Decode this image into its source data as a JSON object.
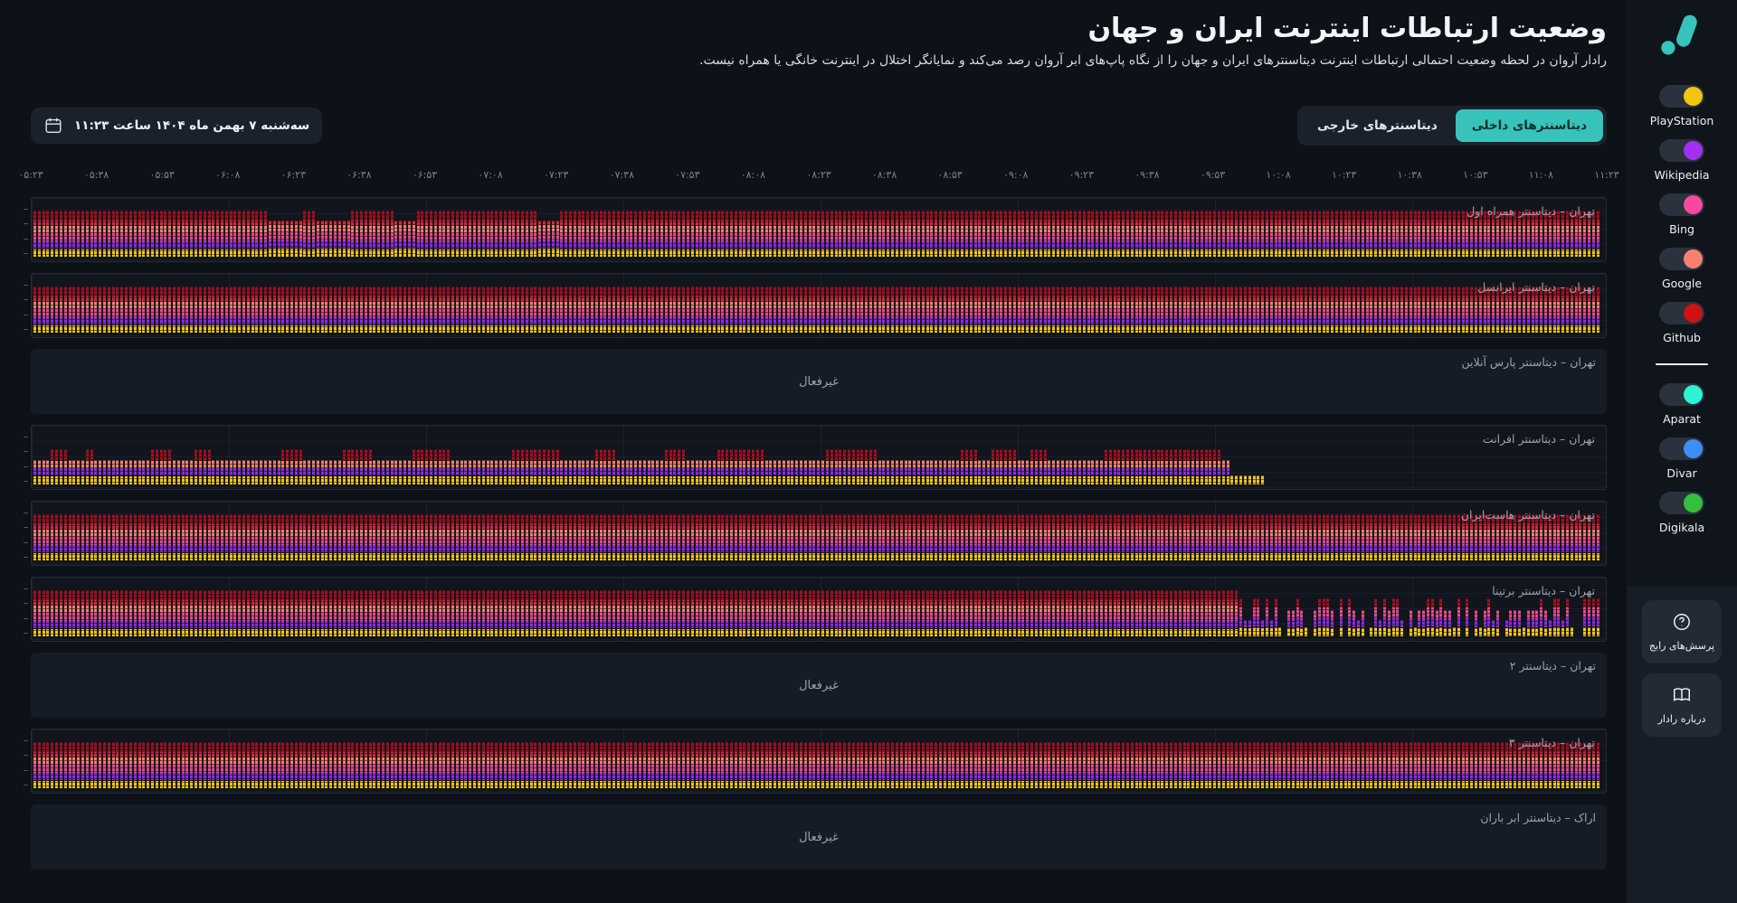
{
  "theme": {
    "accent": "#38c3ba",
    "page_background": "#0d1118"
  },
  "header": {
    "title": "وضعیت ارتباطات اینترنت ایران و جهان",
    "subtitle": "رادار آروان در لحظه وضعیت احتمالی ارتباطات اینترنت دیتاسنترهای ایران و جهان را از نگاه پاپ‌های ابر آروان رصد می‌کند و نمایانگر اختلال در اینترنت خانگی یا همراه نیست.",
    "tabs": [
      {
        "label": "دیتاسنترهای داخلی",
        "active": true
      },
      {
        "label": "دیتاسنترهای خارجی",
        "active": false
      }
    ],
    "date_label": "سه‌شنبه ۷ بهمن ماه ۱۴۰۴ ساعت ۱۱:۲۳"
  },
  "sidebar": {
    "external_services": [
      {
        "name": "PlayStation",
        "color": "#f3c512"
      },
      {
        "name": "Wikipedia",
        "color": "#a42ff5"
      },
      {
        "name": "Bing",
        "color": "#f6499f"
      },
      {
        "name": "Google",
        "color": "#f9806f"
      },
      {
        "name": "Github",
        "color": "#cd1212"
      }
    ],
    "internal_services": [
      {
        "name": "Aparat",
        "color": "#2df2d4"
      },
      {
        "name": "Divar",
        "color": "#3e8df8"
      },
      {
        "name": "Digikala",
        "color": "#35c13c"
      }
    ],
    "faq_label": "پرسش‌های رایج",
    "about_label": "درباره رادار"
  },
  "chart_data": {
    "type": "heatmap",
    "title": "وضعیت ارتباطات اینترنت ایران و جهان",
    "x_range": {
      "start": "05:23",
      "end": "11:23",
      "interval_minutes": 15
    },
    "x_ticks": [
      "۰۵:۲۳",
      "۰۵:۳۸",
      "۰۵:۵۳",
      "۰۶:۰۸",
      "۰۶:۲۳",
      "۰۶:۳۸",
      "۰۶:۵۳",
      "۰۷:۰۸",
      "۰۷:۲۳",
      "۰۷:۳۸",
      "۰۷:۵۳",
      "۰۸:۰۸",
      "۰۸:۲۳",
      "۰۸:۳۸",
      "۰۸:۵۳",
      "۰۹:۰۸",
      "۰۹:۲۳",
      "۰۹:۳۸",
      "۰۹:۵۳",
      "۱۰:۰۸",
      "۱۰:۲۳",
      "۱۰:۳۸",
      "۱۰:۵۳",
      "۱۱:۰۸",
      "۱۱:۲۳"
    ],
    "inactive_label": "غیرفعال",
    "legend_note": "bar segment colors correspond to monitored services",
    "colors": {
      "github": "#a30f1d",
      "red": "#d62839",
      "google": "#ef7f6a",
      "bing": "#e8488a",
      "wikipedia": "#8f2ae0",
      "playstation": "#f5c518"
    },
    "rows": [
      {
        "label": "تهران – دیتاسنتر همراه اول",
        "status": "active",
        "pattern": [
          {
            "from": 0,
            "to": 0.151,
            "style": "full"
          },
          {
            "from": 0.151,
            "to": 0.171,
            "style": "dip"
          },
          {
            "from": 0.171,
            "to": 0.181,
            "style": "full"
          },
          {
            "from": 0.181,
            "to": 0.204,
            "style": "dip"
          },
          {
            "from": 0.204,
            "to": 0.231,
            "style": "full"
          },
          {
            "from": 0.231,
            "to": 0.245,
            "style": "dip"
          },
          {
            "from": 0.245,
            "to": 0.322,
            "style": "full"
          },
          {
            "from": 0.322,
            "to": 0.337,
            "style": "dip"
          },
          {
            "from": 0.337,
            "to": 1,
            "style": "full"
          }
        ]
      },
      {
        "label": "تهران – دیتاسنتر ایرانسل",
        "status": "active",
        "pattern": [
          {
            "from": 0,
            "to": 1,
            "style": "full"
          }
        ]
      },
      {
        "label": "تهران – دیتاسنتر پارس آنلاین",
        "status": "inactive",
        "pattern": []
      },
      {
        "label": "تهران – دیتاسنتر افرانت",
        "status": "active",
        "pattern": [
          {
            "from": 0,
            "to": 0.765,
            "style": "short"
          },
          {
            "from": 0.765,
            "to": 0.787,
            "style": "yellow"
          }
        ],
        "spikes": [
          [
            0.01,
            0.022
          ],
          [
            0.034,
            0.039
          ],
          [
            0.074,
            0.089
          ],
          [
            0.103,
            0.115
          ],
          [
            0.159,
            0.171
          ],
          [
            0.196,
            0.218
          ],
          [
            0.242,
            0.266
          ],
          [
            0.305,
            0.336
          ],
          [
            0.357,
            0.372
          ],
          [
            0.404,
            0.418
          ],
          [
            0.437,
            0.468
          ],
          [
            0.505,
            0.538
          ],
          [
            0.591,
            0.602
          ],
          [
            0.61,
            0.628
          ],
          [
            0.635,
            0.648
          ],
          [
            0.683,
            0.758
          ]
        ]
      },
      {
        "label": "تهران – دیتاسنتر هاست‌ایران",
        "status": "active",
        "pattern": [
          {
            "from": 0,
            "to": 1,
            "style": "full"
          }
        ]
      },
      {
        "label": "تهران – دیتاسنتر برتینا",
        "status": "active",
        "pattern": [
          {
            "from": 0,
            "to": 0.77,
            "style": "full"
          },
          {
            "from": 0.77,
            "to": 1,
            "style": "sparse"
          }
        ]
      },
      {
        "label": "تهران – دیتاسنتر ۲",
        "status": "inactive",
        "pattern": []
      },
      {
        "label": "تهران – دیتاسنتر ۳",
        "status": "active",
        "pattern": [
          {
            "from": 0,
            "to": 1,
            "style": "full"
          }
        ]
      },
      {
        "label": "اراک – دیتاسنتر ابر باران",
        "status": "inactive",
        "pattern": []
      }
    ]
  }
}
